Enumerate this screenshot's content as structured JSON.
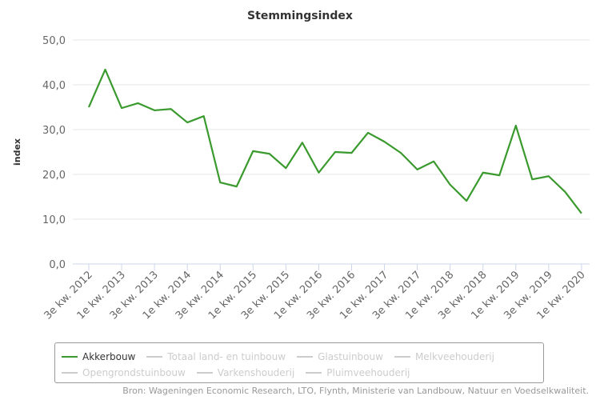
{
  "chart_data": {
    "type": "line",
    "title": "Stemmingsindex",
    "ylabel": "index",
    "xlabel": "",
    "ylim": [
      0,
      50
    ],
    "yticks": [
      "0,0",
      "10,0",
      "20,0",
      "30,0",
      "40,0",
      "50,0"
    ],
    "ytick_values": [
      0,
      10,
      20,
      30,
      40,
      50
    ],
    "grid": true,
    "x": [
      "3e kw. 2012",
      "4e kw. 2012",
      "1e kw. 2013",
      "2e kw. 2013",
      "3e kw. 2013",
      "4e kw. 2013",
      "1e kw. 2014",
      "2e kw. 2014",
      "3e kw. 2014",
      "4e kw. 2014",
      "1e kw. 2015",
      "2e kw. 2015",
      "3e kw. 2015",
      "4e kw. 2015",
      "1e kw. 2016",
      "2e kw. 2016",
      "3e kw. 2016",
      "4e kw. 2016",
      "1e kw. 2017",
      "2e kw. 2017",
      "3e kw. 2017",
      "4e kw. 2017",
      "1e kw. 2018",
      "2e kw. 2018",
      "3e kw. 2018",
      "4e kw. 2018",
      "1e kw. 2019",
      "2e kw. 2019",
      "3e kw. 2019",
      "4e kw. 2019",
      "1e kw. 2020"
    ],
    "xtick_labels": [
      "3e kw. 2012",
      "1e kw. 2013",
      "3e kw. 2013",
      "1e kw. 2014",
      "3e kw. 2014",
      "1e kw. 2015",
      "3e kw. 2015",
      "1e kw. 2016",
      "3e kw. 2016",
      "1e kw. 2017",
      "3e kw. 2017",
      "1e kw. 2018",
      "3e kw. 2018",
      "1e kw. 2019",
      "3e kw. 2019",
      "1e kw. 2020"
    ],
    "series": [
      {
        "name": "Akkerbouw",
        "color": "#3a9a2e",
        "visible": true,
        "values": [
          35.0,
          43.4,
          34.8,
          35.9,
          34.3,
          34.6,
          31.6,
          33.0,
          18.2,
          17.3,
          25.2,
          24.6,
          21.4,
          27.1,
          20.4,
          25.0,
          24.8,
          29.3,
          27.3,
          24.8,
          21.1,
          22.9,
          17.7,
          14.1,
          20.4,
          19.8,
          30.9,
          18.9,
          19.6,
          16.1,
          11.3
        ]
      }
    ],
    "legend_position": "bottom"
  },
  "legend": [
    "Akkerbouw",
    "Totaal land- en tuinbouw",
    "Glastuinbouw",
    "Melkveehouderij",
    "Opengrondstuinbouw",
    "Varkenshouderij",
    "Pluimveehouderij"
  ],
  "source": "Bron: Wageningen Economic Research, LTO, Flynth, Ministerie van Landbouw, Natuur en Voedselkwaliteit."
}
